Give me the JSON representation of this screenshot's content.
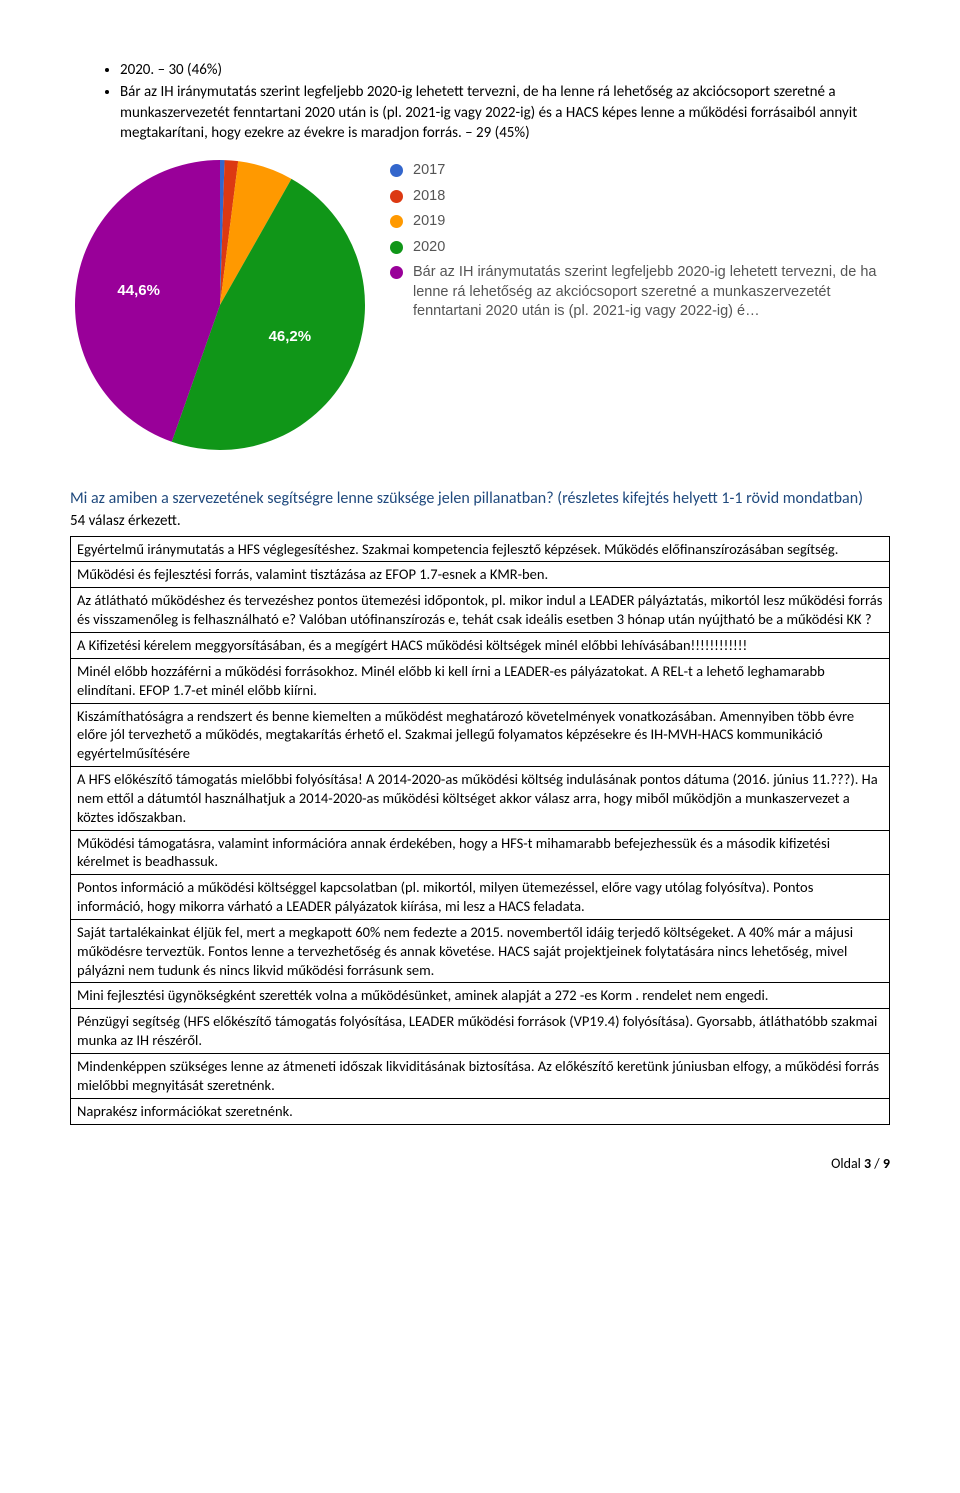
{
  "bullets": [
    "2020. – 30 (46%)",
    "Bár az IH iránymutatás szerint legfeljebb 2020-ig lehetett tervezni, de ha lenne rá lehetőség az akciócsoport szeretné a munkaszervezetét fenntartani 2020 után is (pl. 2021-ig vagy 2022-ig) és a HACS képes lenne a működési forrásaiból annyit megtakarítani, hogy ezekre az évekre is maradjon forrás. – 29 (45%)"
  ],
  "chart": {
    "type": "pie",
    "background_color": "#ffffff",
    "slices": [
      {
        "label": "2017",
        "value": 0.5,
        "color": "#3366cc"
      },
      {
        "label": "2018",
        "value": 1.5,
        "color": "#dc3912"
      },
      {
        "label": "2019",
        "value": 6.2,
        "color": "#ff9900"
      },
      {
        "label": "2020",
        "value": 47.2,
        "color": "#109618"
      },
      {
        "label": "Bár az IH iránymutatás szerint legfeljebb 2020-ig lehetett tervezni, de ha lenne rá lehetőség az akciócsoport szeretné a munkaszervezetét fenntartani 2020 után is (pl. 2021-ig vagy 2022-ig) é…",
        "value": 44.6,
        "color": "#990099"
      }
    ],
    "shown_labels": [
      {
        "text": "44,6%",
        "slice_index": 4
      },
      {
        "text": "46,2%",
        "slice_index": 3
      }
    ],
    "label_color": "#ffffff",
    "label_fontsize": 15,
    "legend_fontsize": 14,
    "legend_text_color": "#555555"
  },
  "question": "Mi az amiben a szervezetének segítségre lenne szüksége jelen pillanatban? (részletes kifejtés helyett 1-1 rövid mondatban)",
  "response_count": "54 válasz érkezett.",
  "answers": [
    "Egyértelmű iránymutatás a HFS véglegesítéshez. Szakmai kompetencia fejlesztő képzések. Működés előfinanszírozásában segítség.",
    "Működési és fejlesztési forrás, valamint tisztázása az EFOP 1.7-esnek a KMR-ben.",
    "Az átlátható működéshez és tervezéshez pontos ütemezési időpontok, pl. mikor indul a LEADER pályáztatás, mikortól lesz működési forrás és visszamenőleg is felhasználható e? Valóban utófinanszírozás e, tehát csak ideális esetben 3 hónap után nyújtható be a működési KK ?",
    "A Kifizetési kérelem meggyorsításában, és a megígért HACS működési költségek minél előbbi lehívásában!!!!!!!!!!!!",
    "Minél előbb hozzáférni a működési forrásokhoz. Minél előbb ki kell írni a LEADER-es pályázatokat. A REL-t a lehető leghamarabb elindítani. EFOP 1.7-et minél előbb kiírni.",
    "Kiszámíthatóságra a rendszert és benne kiemelten a működést meghatározó követelmények vonatkozásában. Amennyiben több évre előre jól tervezhető a működés, megtakarítás érhető el. Szakmai jellegű folyamatos képzésekre és IH-MVH-HACS kommunikáció egyértelműsítésére",
    "A HFS előkészítő támogatás mielőbbi folyósítása! A 2014-2020-as működési költség indulásának pontos dátuma (2016. június 11.???). Ha nem ettől a dátumtól használhatjuk a 2014-2020-as működési költséget akkor válasz arra, hogy miből működjön a munkaszervezet a köztes időszakban.",
    "Működési támogatásra, valamint információra annak érdekében, hogy a HFS-t mihamarabb befejezhessük és a második kifizetési kérelmet is beadhassuk.",
    "Pontos információ a működési költséggel kapcsolatban (pl. mikortól, milyen ütemezéssel, előre vagy utólag folyósítva). Pontos információ, hogy mikorra várható a LEADER pályázatok kiírása, mi lesz a HACS feladata.",
    "Saját tartalékainkat éljük fel, mert a megkapott 60% nem fedezte a 2015. novembertől idáig terjedő költségeket. A 40% már a májusi működésre terveztük. Fontos lenne a tervezhetőség és annak követése. HACS saját projektjeinek folytatására nincs lehetőség, mivel pályázni nem tudunk és nincs likvid működési forrásunk sem.",
    "Mini fejlesztési ügynökségként szerették volna a működésünket, aminek alapját a 272 -es Korm . rendelet nem engedi.",
    "Pénzügyi segítség (HFS előkészítő támogatás folyósítása, LEADER működési források (VP19.4) folyósítása). Gyorsabb, átláthatóbb szakmai munka az IH részéről.",
    "Mindenképpen szükséges lenne az átmeneti időszak likviditásának biztosítása. Az előkészítő keretünk júniusban elfogy, a működési forrás mielőbbi megnyitását szeretnénk.",
    "Naprakész információkat szeretnénk."
  ],
  "footer": {
    "prefix": "Oldal ",
    "page": "3",
    "sep": " / ",
    "total": "9"
  }
}
